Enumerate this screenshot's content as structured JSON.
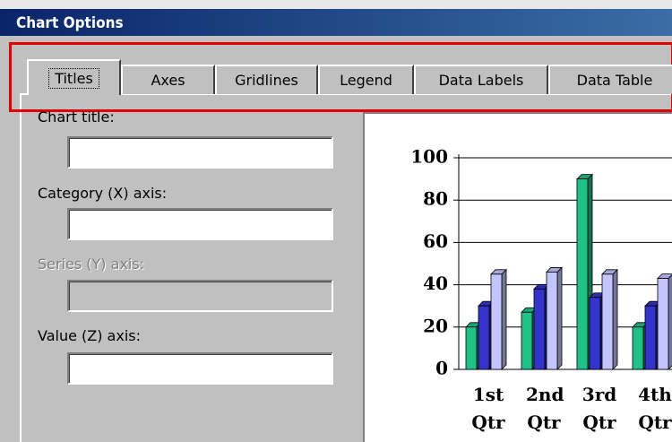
{
  "window": {
    "title": "Chart Options"
  },
  "tabs": [
    "Titles",
    "Axes",
    "Gridlines",
    "Legend",
    "Data Labels",
    "Data Table"
  ],
  "fields": [
    {
      "label": "Chart title:"
    },
    {
      "label": "Category (X) axis:"
    },
    {
      "label": "Series (Y) axis:"
    },
    {
      "label": "Value (Z) axis:"
    }
  ],
  "chart_data": {
    "type": "bar",
    "categories": [
      "1st Qtr",
      "2nd Qtr",
      "3rd Qtr",
      "4th Qtr"
    ],
    "series": [
      {
        "color": "#20c088",
        "values": [
          20,
          27,
          90,
          20
        ]
      },
      {
        "color": "#3434cc",
        "values": [
          30,
          38,
          34,
          30
        ]
      },
      {
        "color": "#c4c4ff",
        "values": [
          45,
          46,
          45,
          43
        ]
      }
    ],
    "ylim": [
      0,
      100
    ],
    "yticks": [
      0,
      20,
      40,
      60,
      80,
      100
    ],
    "grid": true
  }
}
